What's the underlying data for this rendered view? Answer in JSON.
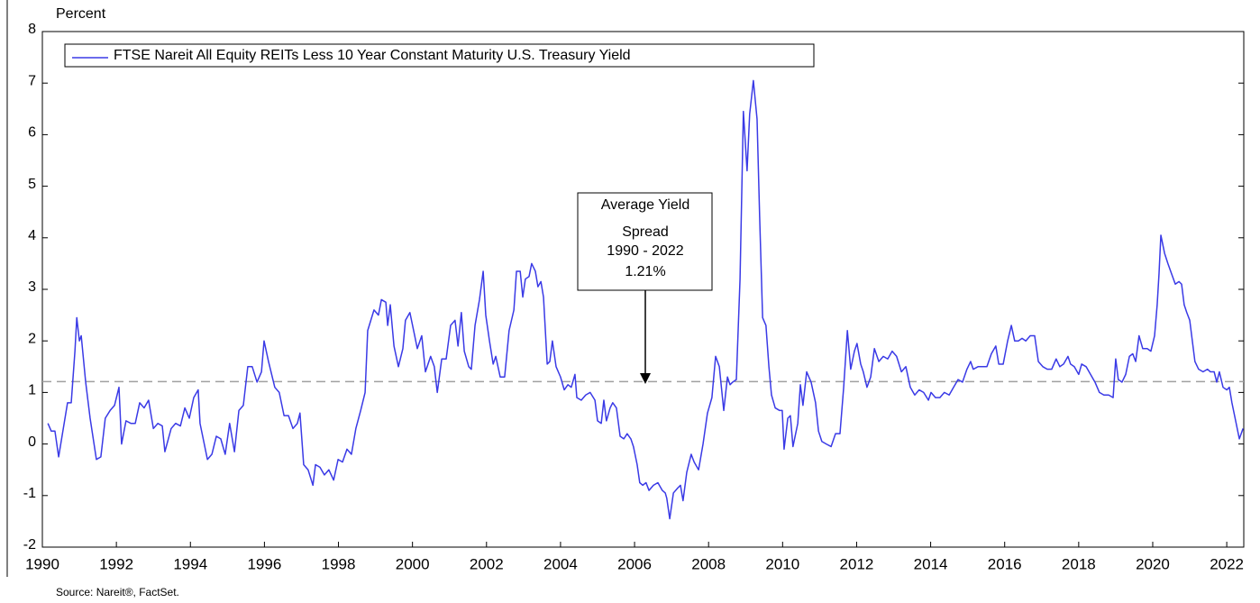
{
  "chart_data": {
    "type": "line",
    "y_label": "Percent",
    "source": "Source: Nareit®, FactSet.",
    "annotation": [
      "Average Yield",
      "Spread",
      "1990 - 2022",
      "1.21%"
    ],
    "average": 1.21,
    "average_color": "#a0a0a0",
    "xlim": [
      1990,
      2022.46
    ],
    "ylim": [
      -2,
      8
    ],
    "xticks": [
      1990,
      1992,
      1994,
      1996,
      1998,
      2000,
      2002,
      2004,
      2006,
      2008,
      2010,
      2012,
      2014,
      2016,
      2018,
      2020,
      2022
    ],
    "yticks": [
      -2,
      -1,
      0,
      1,
      2,
      3,
      4,
      5,
      6,
      7,
      8
    ],
    "grid": false,
    "legend": "top-left",
    "x": [
      1990.15,
      1990.24,
      1990.34,
      1990.44,
      1990.68,
      1990.78,
      1990.88,
      1990.93,
      1991.0,
      1991.05,
      1991.17,
      1991.29,
      1991.46,
      1991.58,
      1991.7,
      1991.83,
      1991.95,
      1992.07,
      1992.14,
      1992.26,
      1992.39,
      1992.51,
      1992.63,
      1992.75,
      1992.87,
      1993.0,
      1993.12,
      1993.24,
      1993.31,
      1993.48,
      1993.6,
      1993.73,
      1993.85,
      1993.97,
      1994.09,
      1994.21,
      1994.26,
      1994.46,
      1994.58,
      1994.7,
      1994.82,
      1994.94,
      1995.06,
      1995.19,
      1995.31,
      1995.43,
      1995.55,
      1995.67,
      1995.8,
      1995.92,
      1995.99,
      1996.11,
      1996.28,
      1996.4,
      1996.53,
      1996.65,
      1996.77,
      1996.89,
      1996.96,
      1997.06,
      1997.18,
      1997.31,
      1997.38,
      1997.5,
      1997.62,
      1997.74,
      1997.87,
      1997.99,
      1998.11,
      1998.23,
      1998.35,
      1998.47,
      1998.6,
      1998.72,
      1998.79,
      1998.96,
      1999.08,
      1999.16,
      1999.28,
      1999.33,
      1999.4,
      1999.5,
      1999.62,
      1999.74,
      1999.81,
      1999.93,
      2000.06,
      2000.13,
      2000.25,
      2000.35,
      2000.49,
      2000.59,
      2000.67,
      2000.79,
      2000.91,
      2001.03,
      2001.15,
      2001.23,
      2001.32,
      2001.4,
      2001.52,
      2001.59,
      2001.69,
      2001.81,
      2001.91,
      2001.98,
      2002.08,
      2002.18,
      2002.25,
      2002.37,
      2002.49,
      2002.61,
      2002.74,
      2002.81,
      2002.91,
      2002.98,
      2003.05,
      2003.15,
      2003.22,
      2003.32,
      2003.39,
      2003.47,
      2003.54,
      2003.64,
      2003.71,
      2003.78,
      2003.88,
      2004.0,
      2004.1,
      2004.2,
      2004.29,
      2004.39,
      2004.44,
      2004.56,
      2004.68,
      2004.8,
      2004.93,
      2005.0,
      2005.1,
      2005.17,
      2005.24,
      2005.34,
      2005.41,
      2005.51,
      2005.61,
      2005.71,
      2005.8,
      2005.9,
      2005.97,
      2006.07,
      2006.14,
      2006.22,
      2006.31,
      2006.39,
      2006.51,
      2006.63,
      2006.75,
      2006.83,
      2006.87,
      2006.95,
      2007.05,
      2007.17,
      2007.24,
      2007.31,
      2007.41,
      2007.53,
      2007.61,
      2007.73,
      2007.85,
      2007.97,
      2008.09,
      2008.19,
      2008.29,
      2008.41,
      2008.51,
      2008.58,
      2008.65,
      2008.75,
      2008.85,
      2008.94,
      2009.04,
      2009.11,
      2009.21,
      2009.31,
      2009.38,
      2009.46,
      2009.55,
      2009.63,
      2009.7,
      2009.8,
      2009.92,
      2009.99,
      2010.04,
      2010.14,
      2010.21,
      2010.28,
      2010.41,
      2010.48,
      2010.55,
      2010.65,
      2010.77,
      2010.89,
      2010.97,
      2011.06,
      2011.18,
      2011.31,
      2011.43,
      2011.55,
      2011.65,
      2011.75,
      2011.84,
      2011.94,
      2012.01,
      2012.11,
      2012.18,
      2012.28,
      2012.38,
      2012.48,
      2012.6,
      2012.72,
      2012.84,
      2012.96,
      2013.08,
      2013.21,
      2013.33,
      2013.45,
      2013.57,
      2013.69,
      2013.81,
      2013.94,
      2014.01,
      2014.13,
      2014.25,
      2014.37,
      2014.5,
      2014.62,
      2014.74,
      2014.86,
      2014.98,
      2015.08,
      2015.15,
      2015.28,
      2015.4,
      2015.52,
      2015.64,
      2015.76,
      2015.84,
      2015.96,
      2016.08,
      2016.18,
      2016.27,
      2016.37,
      2016.47,
      2016.57,
      2016.69,
      2016.81,
      2016.91,
      2017.03,
      2017.15,
      2017.27,
      2017.39,
      2017.49,
      2017.59,
      2017.71,
      2017.78,
      2017.88,
      2018.0,
      2018.08,
      2018.2,
      2018.32,
      2018.44,
      2018.56,
      2018.68,
      2018.81,
      2018.93,
      2019.0,
      2019.07,
      2019.17,
      2019.27,
      2019.37,
      2019.46,
      2019.54,
      2019.63,
      2019.73,
      2019.85,
      2019.95,
      2020.05,
      2020.12,
      2020.17,
      2020.22,
      2020.32,
      2020.41,
      2020.51,
      2020.61,
      2020.71,
      2020.78,
      2020.85,
      2020.92,
      2021.0,
      2021.07,
      2021.14,
      2021.24,
      2021.36,
      2021.48,
      2021.56,
      2021.66,
      2021.73,
      2021.8,
      2021.9,
      2022.0,
      2022.07,
      2022.14,
      2022.24,
      2022.34,
      2022.44
    ],
    "series": [
      {
        "name": "FTSE Nareit All Equity REITs Less 10 Year Constant Maturity U.S. Treasury Yield",
        "color": "#3a3ae6",
        "values": [
          0.4,
          0.25,
          0.25,
          -0.25,
          0.8,
          0.8,
          1.8,
          2.45,
          2.0,
          2.1,
          1.2,
          0.5,
          -0.3,
          -0.25,
          0.5,
          0.65,
          0.75,
          1.1,
          0.0,
          0.45,
          0.4,
          0.4,
          0.8,
          0.7,
          0.85,
          0.3,
          0.4,
          0.35,
          -0.15,
          0.3,
          0.4,
          0.35,
          0.7,
          0.5,
          0.9,
          1.05,
          0.4,
          -0.3,
          -0.2,
          0.15,
          0.1,
          -0.2,
          0.4,
          -0.15,
          0.65,
          0.75,
          1.5,
          1.5,
          1.2,
          1.4,
          2.0,
          1.6,
          1.1,
          1.0,
          0.55,
          0.55,
          0.3,
          0.4,
          0.6,
          -0.4,
          -0.5,
          -0.8,
          -0.4,
          -0.45,
          -0.6,
          -0.5,
          -0.7,
          -0.3,
          -0.35,
          -0.1,
          -0.2,
          0.3,
          0.65,
          1.0,
          2.2,
          2.6,
          2.5,
          2.8,
          2.75,
          2.3,
          2.7,
          1.9,
          1.5,
          1.85,
          2.4,
          2.55,
          2.1,
          1.85,
          2.1,
          1.4,
          1.7,
          1.5,
          1.0,
          1.65,
          1.65,
          2.3,
          2.4,
          1.9,
          2.55,
          1.8,
          1.5,
          1.45,
          2.3,
          2.8,
          3.35,
          2.5,
          2.0,
          1.55,
          1.7,
          1.3,
          1.3,
          2.2,
          2.6,
          3.35,
          3.35,
          2.85,
          3.2,
          3.25,
          3.5,
          3.35,
          3.05,
          3.15,
          2.85,
          1.55,
          1.6,
          2.0,
          1.5,
          1.3,
          1.05,
          1.15,
          1.1,
          1.35,
          0.9,
          0.85,
          0.95,
          1.0,
          0.85,
          0.45,
          0.4,
          0.85,
          0.45,
          0.7,
          0.8,
          0.7,
          0.15,
          0.1,
          0.2,
          0.1,
          -0.05,
          -0.4,
          -0.75,
          -0.8,
          -0.75,
          -0.9,
          -0.8,
          -0.75,
          -0.9,
          -0.95,
          -1.05,
          -1.45,
          -0.95,
          -0.85,
          -0.8,
          -1.1,
          -0.55,
          -0.2,
          -0.35,
          -0.5,
          0.0,
          0.6,
          0.9,
          1.7,
          1.5,
          0.65,
          1.3,
          1.15,
          1.2,
          1.25,
          3.2,
          6.45,
          5.3,
          6.4,
          7.05,
          6.3,
          4.4,
          2.45,
          2.3,
          1.5,
          0.95,
          0.7,
          0.65,
          0.65,
          -0.1,
          0.5,
          0.55,
          -0.05,
          0.4,
          1.15,
          0.75,
          1.4,
          1.2,
          0.8,
          0.25,
          0.05,
          0.0,
          -0.05,
          0.2,
          0.2,
          1.1,
          2.2,
          1.45,
          1.8,
          1.95,
          1.55,
          1.4,
          1.1,
          1.3,
          1.85,
          1.6,
          1.7,
          1.65,
          1.8,
          1.7,
          1.4,
          1.5,
          1.1,
          0.95,
          1.05,
          1.0,
          0.85,
          1.0,
          0.9,
          0.9,
          1.0,
          0.95,
          1.1,
          1.25,
          1.2,
          1.45,
          1.6,
          1.45,
          1.5,
          1.5,
          1.5,
          1.75,
          1.9,
          1.55,
          1.55,
          2.0,
          2.3,
          2.0,
          2.0,
          2.05,
          2.0,
          2.1,
          2.1,
          1.6,
          1.5,
          1.45,
          1.45,
          1.65,
          1.5,
          1.55,
          1.7,
          1.55,
          1.5,
          1.35,
          1.55,
          1.5,
          1.35,
          1.2,
          1.0,
          0.95,
          0.95,
          0.9,
          1.65,
          1.25,
          1.2,
          1.35,
          1.7,
          1.75,
          1.6,
          2.1,
          1.85,
          1.85,
          1.8,
          2.1,
          2.7,
          3.3,
          4.05,
          3.7,
          3.5,
          3.3,
          3.1,
          3.15,
          3.1,
          2.7,
          2.55,
          2.4,
          2.0,
          1.6,
          1.45,
          1.4,
          1.45,
          1.4,
          1.4,
          1.2,
          1.4,
          1.1,
          1.05,
          1.1,
          0.8,
          0.45,
          0.1,
          0.3
        ]
      }
    ]
  }
}
